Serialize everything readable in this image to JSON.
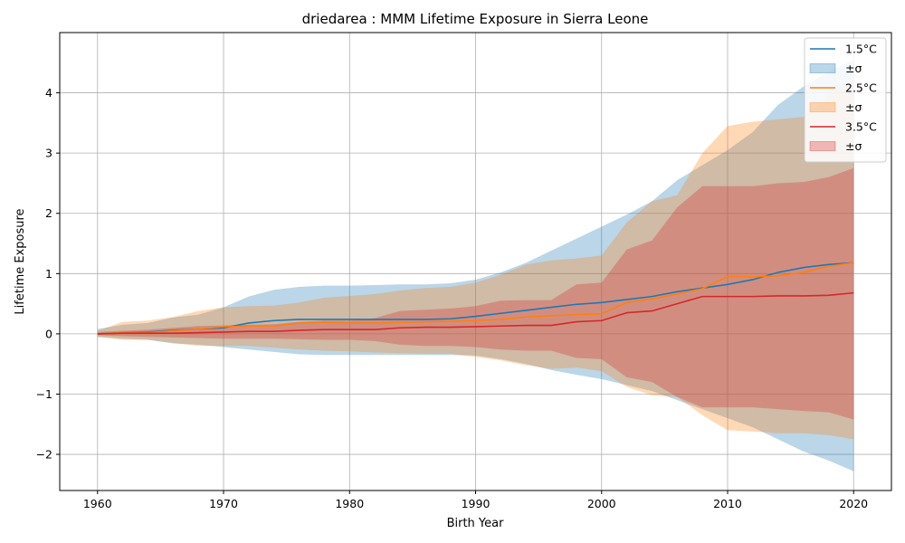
{
  "chart_data": {
    "type": "line",
    "title": "driedarea : MMM Lifetime Exposure in Sierra Leone",
    "xlabel": "Birth Year",
    "ylabel": "Lifetime Exposure",
    "xlim": [
      1957,
      2023
    ],
    "ylim": [
      -2.6,
      5.0
    ],
    "xticks": [
      1960,
      1970,
      1980,
      1990,
      2000,
      2010,
      2020
    ],
    "yticks": [
      -2,
      -1,
      0,
      1,
      2,
      3,
      4
    ],
    "ytick_labels": [
      "−2",
      "−1",
      "0",
      "1",
      "2",
      "3",
      "4"
    ],
    "grid": true,
    "legend_position": "top-right",
    "x": [
      1960,
      1962,
      1964,
      1966,
      1968,
      1970,
      1972,
      1974,
      1976,
      1978,
      1980,
      1982,
      1984,
      1986,
      1988,
      1990,
      1992,
      1994,
      1996,
      1998,
      2000,
      2002,
      2004,
      2006,
      2008,
      2010,
      2012,
      2014,
      2016,
      2018,
      2020
    ],
    "series": [
      {
        "name": "1.5°C",
        "band_label": "±σ",
        "color": "#1f77b4",
        "band_color": "#1f77b4",
        "values": [
          0.0,
          0.02,
          0.03,
          0.06,
          0.08,
          0.1,
          0.18,
          0.22,
          0.24,
          0.24,
          0.24,
          0.24,
          0.24,
          0.24,
          0.25,
          0.29,
          0.34,
          0.39,
          0.44,
          0.49,
          0.52,
          0.57,
          0.62,
          0.7,
          0.76,
          0.82,
          0.9,
          1.02,
          1.1,
          1.15,
          1.18
        ],
        "upper": [
          0.08,
          0.15,
          0.18,
          0.27,
          0.32,
          0.44,
          0.62,
          0.73,
          0.78,
          0.8,
          0.8,
          0.81,
          0.82,
          0.82,
          0.84,
          0.9,
          1.02,
          1.18,
          1.38,
          1.58,
          1.78,
          1.98,
          2.2,
          2.55,
          2.8,
          3.05,
          3.35,
          3.8,
          4.1,
          4.35,
          4.55
        ],
        "lower": [
          -0.05,
          -0.08,
          -0.1,
          -0.16,
          -0.18,
          -0.22,
          -0.26,
          -0.3,
          -0.34,
          -0.35,
          -0.35,
          -0.35,
          -0.35,
          -0.35,
          -0.35,
          -0.36,
          -0.42,
          -0.5,
          -0.6,
          -0.68,
          -0.75,
          -0.85,
          -0.95,
          -1.1,
          -1.25,
          -1.4,
          -1.55,
          -1.75,
          -1.95,
          -2.1,
          -2.28
        ]
      },
      {
        "name": "2.5°C",
        "band_label": "±σ",
        "color": "#ff7f0e",
        "band_color": "#ff7f0e",
        "values": [
          0.0,
          0.02,
          0.02,
          0.05,
          0.08,
          0.12,
          0.13,
          0.13,
          0.18,
          0.19,
          0.18,
          0.18,
          0.19,
          0.2,
          0.21,
          0.22,
          0.24,
          0.28,
          0.3,
          0.32,
          0.33,
          0.52,
          0.58,
          0.66,
          0.75,
          0.95,
          0.95,
          0.96,
          1.02,
          1.12,
          1.18
        ],
        "upper": [
          0.05,
          0.2,
          0.22,
          0.28,
          0.38,
          0.44,
          0.46,
          0.47,
          0.52,
          0.6,
          0.63,
          0.66,
          0.72,
          0.76,
          0.78,
          0.85,
          0.98,
          1.15,
          1.22,
          1.25,
          1.3,
          1.85,
          2.2,
          2.3,
          3.0,
          3.45,
          3.52,
          3.56,
          3.6,
          3.95,
          4.22
        ],
        "lower": [
          -0.05,
          -0.1,
          -0.1,
          -0.15,
          -0.2,
          -0.2,
          -0.2,
          -0.23,
          -0.26,
          -0.28,
          -0.29,
          -0.31,
          -0.32,
          -0.33,
          -0.33,
          -0.38,
          -0.44,
          -0.52,
          -0.58,
          -0.56,
          -0.62,
          -0.88,
          -1.02,
          -1.05,
          -1.35,
          -1.6,
          -1.62,
          -1.65,
          -1.65,
          -1.68,
          -1.75
        ]
      },
      {
        "name": "3.5°C",
        "band_label": "±σ",
        "color": "#d62728",
        "band_color": "#d62728",
        "values": [
          0.0,
          0.01,
          0.01,
          0.01,
          0.02,
          0.03,
          0.04,
          0.04,
          0.06,
          0.07,
          0.07,
          0.07,
          0.1,
          0.11,
          0.11,
          0.12,
          0.13,
          0.14,
          0.14,
          0.2,
          0.22,
          0.35,
          0.38,
          0.5,
          0.62,
          0.62,
          0.62,
          0.63,
          0.63,
          0.64,
          0.68
        ],
        "upper": [
          0.03,
          0.05,
          0.07,
          0.1,
          0.13,
          0.14,
          0.15,
          0.16,
          0.2,
          0.22,
          0.22,
          0.26,
          0.38,
          0.4,
          0.42,
          0.46,
          0.55,
          0.56,
          0.56,
          0.82,
          0.85,
          1.4,
          1.55,
          2.1,
          2.45,
          2.45,
          2.45,
          2.5,
          2.52,
          2.6,
          2.75
        ],
        "lower": [
          -0.02,
          -0.04,
          -0.05,
          -0.06,
          -0.07,
          -0.08,
          -0.08,
          -0.08,
          -0.09,
          -0.1,
          -0.1,
          -0.12,
          -0.18,
          -0.2,
          -0.2,
          -0.22,
          -0.26,
          -0.28,
          -0.28,
          -0.4,
          -0.42,
          -0.72,
          -0.8,
          -1.05,
          -1.22,
          -1.22,
          -1.22,
          -1.25,
          -1.28,
          -1.3,
          -1.42
        ]
      }
    ]
  }
}
